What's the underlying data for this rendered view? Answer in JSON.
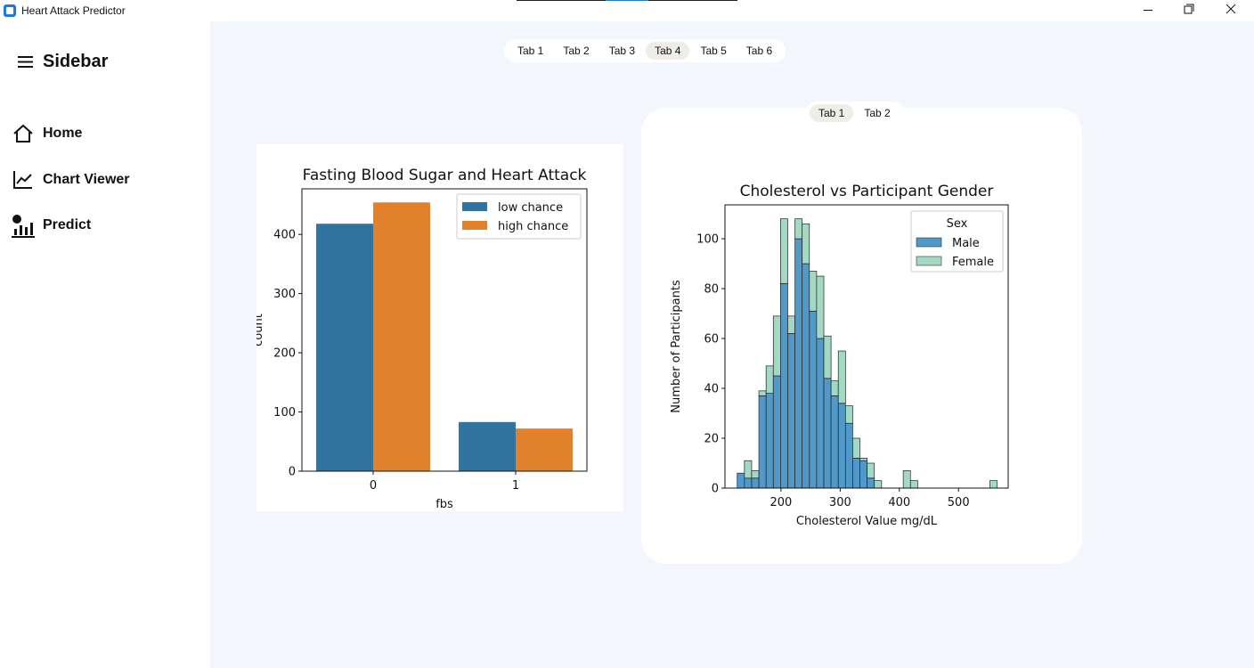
{
  "window": {
    "title": "Heart Attack Predictor"
  },
  "sidebar": {
    "title": "Sidebar",
    "items": [
      "Home",
      "Chart Viewer",
      "Predict"
    ]
  },
  "tabs": {
    "items": [
      "Tab 1",
      "Tab 2",
      "Tab 3",
      "Tab 4",
      "Tab 5",
      "Tab 6"
    ],
    "active": 3
  },
  "inner_tabs": {
    "items": [
      "Tab 1",
      "Tab 2"
    ],
    "active": 0
  },
  "chart_data": [
    {
      "type": "bar",
      "title": "Fasting Blood Sugar and Heart Attack",
      "xlabel": "fbs",
      "ylabel": "count",
      "categories": [
        "0",
        "1"
      ],
      "series": [
        {
          "name": "low chance",
          "color": "#3274a1",
          "values": [
            418,
            83
          ]
        },
        {
          "name": "high chance",
          "color": "#e1812c",
          "values": [
            454,
            72
          ]
        }
      ],
      "ylim": [
        0,
        477
      ],
      "yticks": [
        0,
        100,
        200,
        300,
        400
      ],
      "legend": "upper right"
    },
    {
      "type": "histogram",
      "stacked": true,
      "title": "Cholesterol vs Participant Gender",
      "xlabel": "Cholesterol Value  mg/dL",
      "ylabel": "Number of Participants",
      "legend_title": "Sex",
      "bins": [
        126,
        138.2,
        150.4,
        162.6,
        174.8,
        187,
        199.2,
        211.4,
        223.6,
        235.8,
        248,
        260.2,
        272.4,
        284.6,
        296.8,
        309,
        321.2,
        333.4,
        345.6,
        357.8,
        370,
        382.2,
        394.4,
        406.6,
        418.8,
        431,
        443.2,
        455.4,
        467.6,
        479.8,
        492,
        504.2,
        516.4,
        528.6,
        540.8,
        553,
        565.2
      ],
      "series": [
        {
          "name": "Male",
          "color": "#5199c8",
          "values": [
            6,
            4,
            4,
            37,
            38,
            45,
            82,
            62,
            100,
            90,
            71,
            60,
            44,
            37,
            34,
            26,
            12,
            11,
            4,
            0,
            0,
            0,
            0,
            0,
            0,
            0,
            0,
            0,
            0,
            0,
            0,
            0,
            0,
            0,
            0,
            0
          ]
        },
        {
          "name": "Female",
          "color": "#a3d9c2",
          "values": [
            0,
            7,
            3,
            2,
            11,
            24,
            26,
            7,
            8,
            16,
            16,
            25,
            17,
            6,
            21,
            7,
            8,
            1,
            6,
            3,
            0,
            0,
            0,
            7,
            3,
            0,
            0,
            0,
            0,
            0,
            0,
            0,
            0,
            0,
            0,
            3
          ]
        }
      ],
      "xlim": [
        105.3,
        584
      ],
      "xticks": [
        200,
        300,
        400,
        500
      ],
      "ylim": [
        0,
        113.6
      ],
      "yticks": [
        0,
        20,
        40,
        60,
        80,
        100
      ],
      "legend": "upper right"
    }
  ]
}
